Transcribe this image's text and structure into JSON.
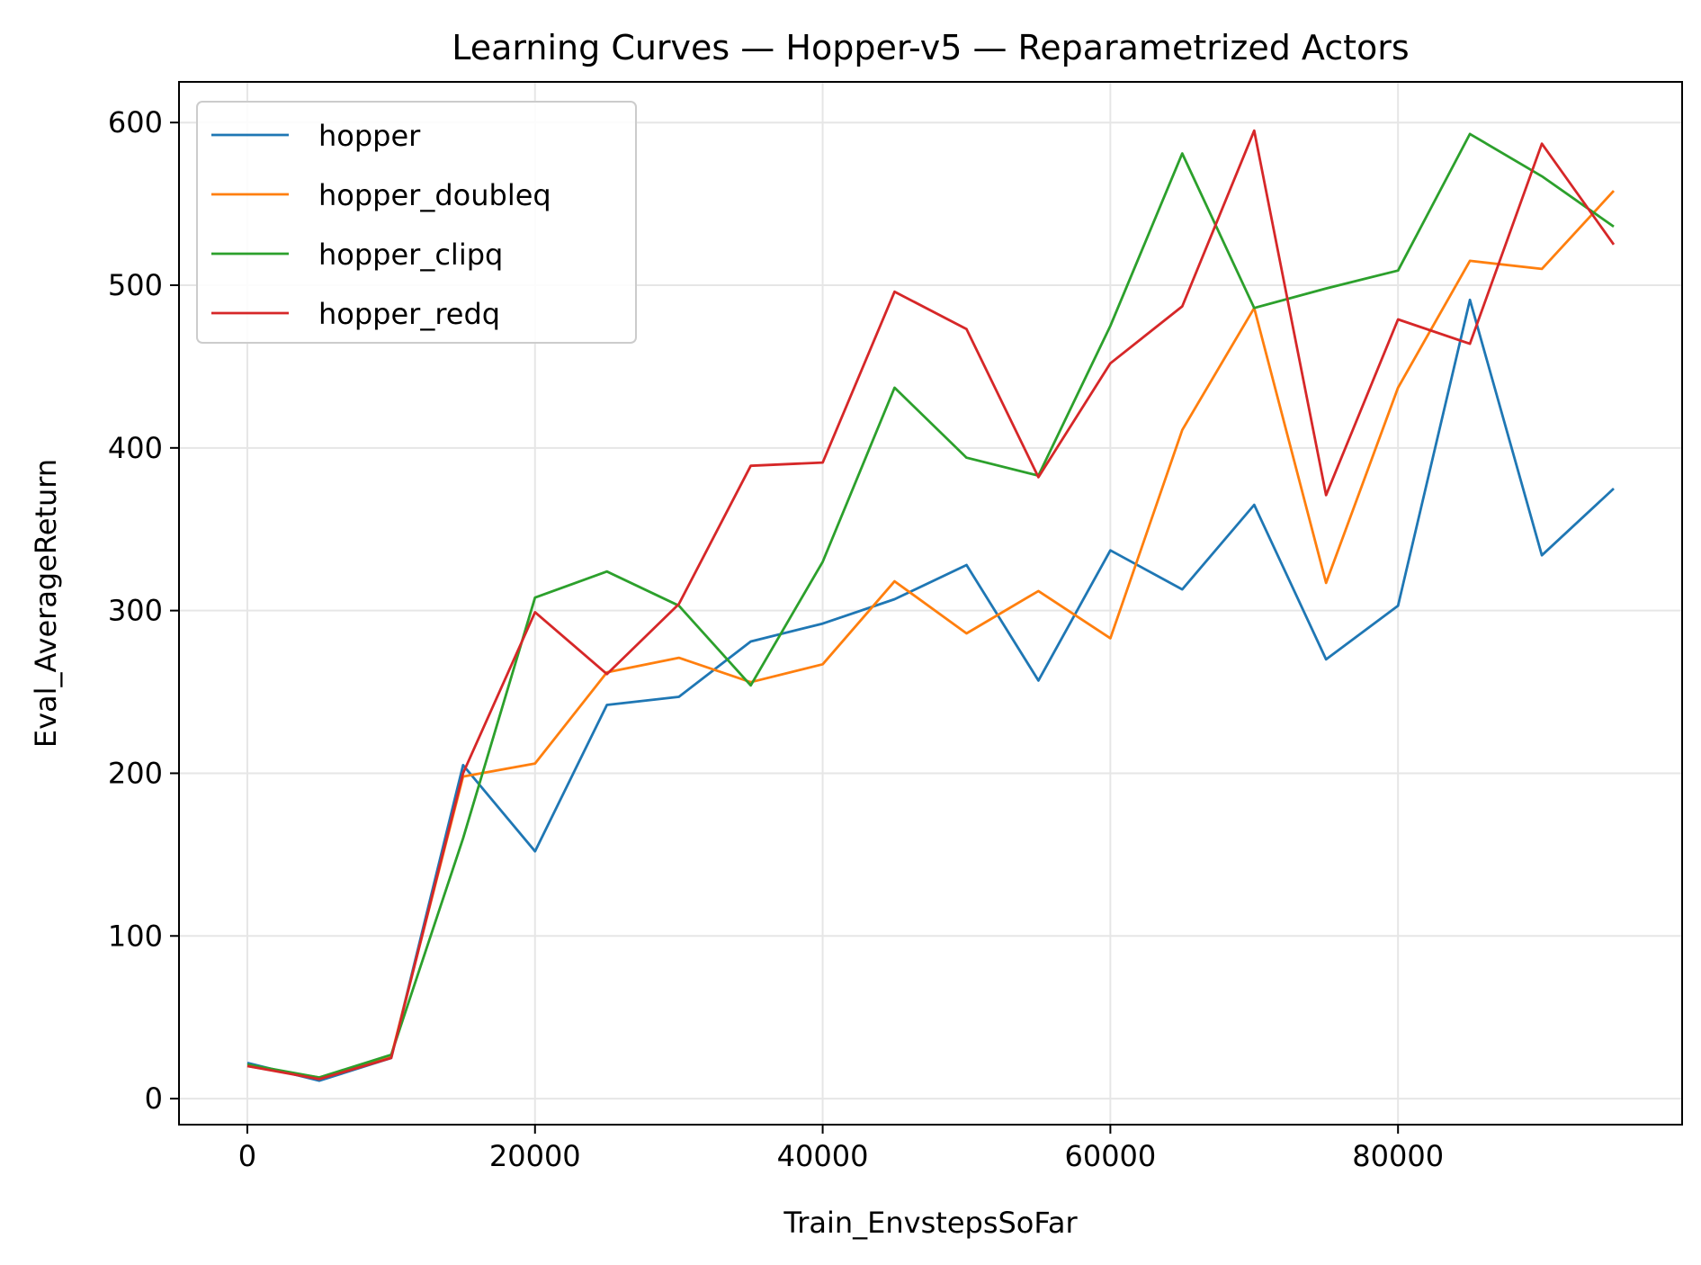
{
  "chart_data": {
    "type": "line",
    "title": "Learning Curves — Hopper-v5 — Reparametrized Actors",
    "xlabel": "Train_EnvstepsSoFar",
    "ylabel": "Eval_AverageReturn",
    "xlim": [
      -4750,
      99750
    ],
    "ylim": [
      -16,
      625
    ],
    "xticks": [
      0,
      20000,
      40000,
      60000,
      80000
    ],
    "yticks": [
      0,
      100,
      200,
      300,
      400,
      500,
      600
    ],
    "grid": true,
    "legend_position": "upper-left",
    "x": [
      0,
      5000,
      10000,
      15000,
      20000,
      25000,
      30000,
      35000,
      40000,
      45000,
      50000,
      55000,
      60000,
      65000,
      70000,
      75000,
      80000,
      85000,
      90000,
      95000
    ],
    "series": [
      {
        "name": "hopper",
        "color": "#1f77b4",
        "values": [
          22,
          11,
          25,
          205,
          152,
          242,
          247,
          281,
          292,
          307,
          328,
          257,
          337,
          313,
          365,
          270,
          303,
          491,
          334,
          375
        ]
      },
      {
        "name": "hopper_doubleq",
        "color": "#ff7f0e",
        "values": [
          20,
          13,
          26,
          198,
          206,
          262,
          271,
          256,
          267,
          318,
          286,
          312,
          283,
          411,
          486,
          317,
          437,
          515,
          510,
          558
        ]
      },
      {
        "name": "hopper_clipq",
        "color": "#2ca02c",
        "values": [
          21,
          13,
          27,
          160,
          308,
          324,
          303,
          254,
          330,
          437,
          394,
          383,
          475,
          581,
          486,
          498,
          509,
          593,
          567,
          536
        ]
      },
      {
        "name": "hopper_redq",
        "color": "#d62728",
        "values": [
          20,
          12,
          25,
          200,
          299,
          261,
          304,
          389,
          391,
          496,
          473,
          382,
          452,
          487,
          595,
          371,
          479,
          464,
          587,
          525
        ]
      }
    ]
  }
}
